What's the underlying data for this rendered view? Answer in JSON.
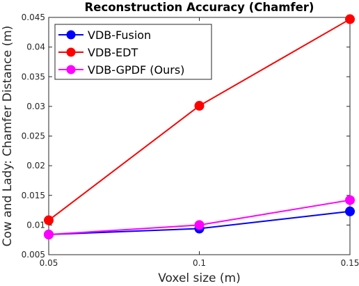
{
  "chart_data": {
    "type": "line",
    "title": "Reconstruction Accuracy (Chamfer)",
    "xlabel": "Voxel size (m)",
    "ylabel": "Cow and Lady: Chamfer Distance (m)",
    "x": [
      0.05,
      0.1,
      0.15
    ],
    "x_tick_labels": [
      "0.05",
      "0.1",
      "0.15"
    ],
    "xlim": [
      0.05,
      0.15
    ],
    "ylim": [
      0.005,
      0.045
    ],
    "y_ticks": [
      0.005,
      0.01,
      0.015,
      0.02,
      0.025,
      0.03,
      0.035,
      0.04,
      0.045
    ],
    "y_tick_labels": [
      "0.005",
      "0.01",
      "0.015",
      "0.02",
      "0.025",
      "0.03",
      "0.035",
      "0.04",
      "0.045"
    ],
    "grid": false,
    "legend_position": "top-left",
    "series": [
      {
        "name": "VDB-Fusion",
        "color": "#0000ff",
        "values": [
          0.0084,
          0.0094,
          0.0123
        ]
      },
      {
        "name": "VDB-EDT",
        "color": "#ff0000",
        "values": [
          0.0108,
          0.0301,
          0.0447
        ]
      },
      {
        "name": "VDB-GPDF (Ours)",
        "color": "#ff00ff",
        "values": [
          0.0084,
          0.01,
          0.0142
        ]
      }
    ]
  }
}
